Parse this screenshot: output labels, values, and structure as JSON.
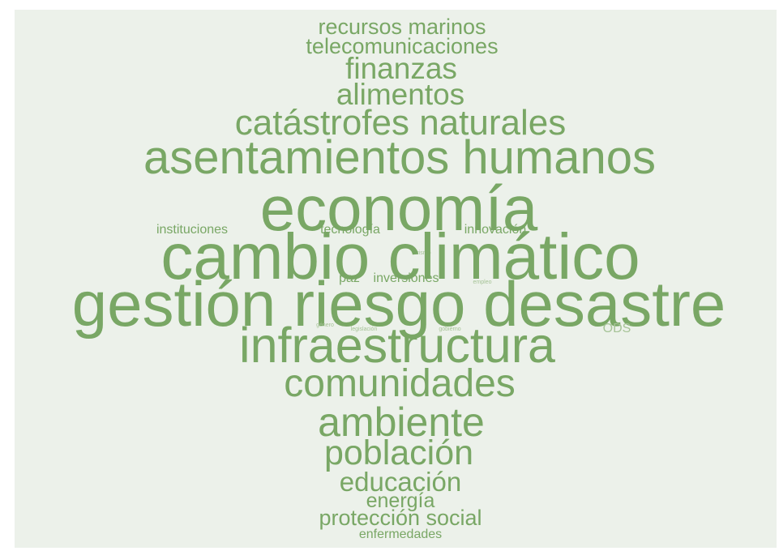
{
  "words": {
    "recursos_marinos": "recursos marinos",
    "telecomunicaciones": "telecomunicaciones",
    "finanzas": "finanzas",
    "alimentos": "alimentos",
    "catastrofes_naturales": "catástrofes naturales",
    "asentamientos_humanos": "asentamientos humanos",
    "economia": "economía",
    "instituciones": "instituciones",
    "tecnologia": "tecnología",
    "innovacion": "innovación",
    "turismo": "turismo",
    "cambio_climatico": "cambio climático",
    "paz": "paz",
    "inversiones": "inversiones",
    "empleo": "empleo",
    "gestion_riesgo_desastre": "gestión riesgo desastre",
    "genero": "género",
    "legislacion": "legislación",
    "gobierno": "gobierno",
    "ods": "ODS",
    "infraestructura": "infraestructura",
    "comunidades": "comunidades",
    "ambiente": "ambiente",
    "poblacion": "población",
    "educacion": "educación",
    "energia": "energía",
    "proteccion_social": "protección social",
    "enfermedades": "enfermedades"
  },
  "colors": {
    "background": "#ecf1ea",
    "word": "#79a765",
    "word_small": "#a6c397"
  }
}
